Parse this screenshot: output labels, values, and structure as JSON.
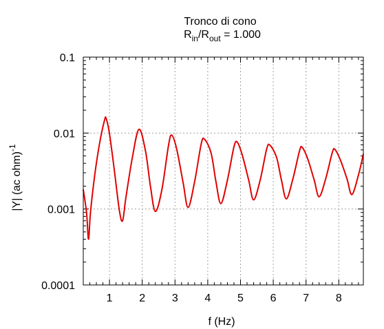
{
  "chart_data": {
    "type": "line",
    "title": "Tronco di cono",
    "subtitle": {
      "prefix": "R",
      "sub1": "in",
      "mid": "/R",
      "sub2": "out",
      "suffix": " = 1.000"
    },
    "xlabel": "f (Hz)",
    "ylabel": {
      "main": "|Y| (ac ohm)",
      "sup": "-1"
    },
    "x_scale": "linear",
    "y_scale": "log",
    "xlim": [
      0.2,
      8.75
    ],
    "ylim": [
      0.0001,
      0.1
    ],
    "x_ticks": [
      "1",
      "2",
      "3",
      "4",
      "5",
      "6",
      "7",
      "8"
    ],
    "y_ticks": [
      "0.0001",
      "0.001",
      "0.01",
      "0.1"
    ],
    "grid": true,
    "line_color": "#e00000",
    "series": [
      {
        "x": [
          0.2,
          0.3,
          0.36,
          0.42,
          0.55,
          0.7,
          0.85,
          0.9,
          1.0,
          1.15,
          1.3,
          1.4,
          1.5,
          1.7,
          1.9,
          2.1,
          2.25,
          2.4,
          2.6,
          2.8,
          2.9,
          3.05,
          3.25,
          3.4,
          3.6,
          3.8,
          3.9,
          4.1,
          4.25,
          4.4,
          4.6,
          4.8,
          4.9,
          5.05,
          5.25,
          5.4,
          5.6,
          5.8,
          5.9,
          6.1,
          6.25,
          6.4,
          6.6,
          6.8,
          6.88,
          7.05,
          7.25,
          7.4,
          7.6,
          7.8,
          7.88,
          8.05,
          8.25,
          8.4,
          8.6,
          8.75
        ],
        "y": [
          0.0018,
          0.0009,
          0.0004,
          0.0009,
          0.0028,
          0.0074,
          0.0148,
          0.0155,
          0.0098,
          0.0032,
          0.00097,
          0.0007,
          0.0014,
          0.0048,
          0.0112,
          0.0058,
          0.002,
          0.00093,
          0.0018,
          0.0068,
          0.0094,
          0.0062,
          0.0022,
          0.00105,
          0.0023,
          0.0072,
          0.0083,
          0.0055,
          0.0023,
          0.00118,
          0.0024,
          0.0066,
          0.0076,
          0.0052,
          0.0024,
          0.00132,
          0.0024,
          0.0062,
          0.0069,
          0.0048,
          0.0024,
          0.00136,
          0.0025,
          0.0058,
          0.0065,
          0.0046,
          0.0024,
          0.00145,
          0.0025,
          0.0055,
          0.0061,
          0.0044,
          0.0025,
          0.00155,
          0.0028,
          0.0053
        ]
      }
    ]
  }
}
